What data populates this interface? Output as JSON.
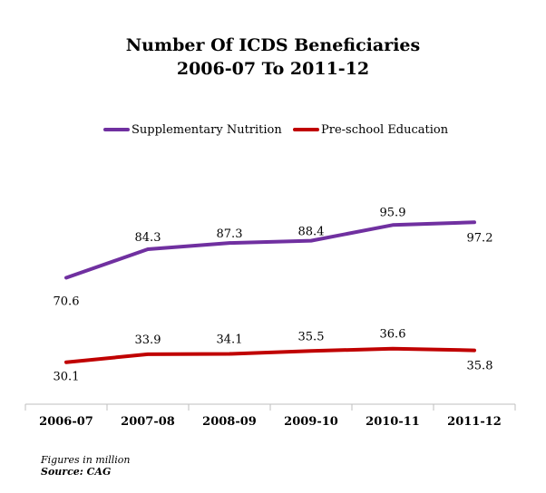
{
  "chart_data": {
    "type": "line",
    "title": [
      "Number Of ICDS Beneficiaries",
      "2006-07 To 2011-12"
    ],
    "categories": [
      "2006-07",
      "2007-08",
      "2008-09",
      "2009-10",
      "2010-11",
      "2011-12"
    ],
    "series": [
      {
        "name": "Supplementary Nutrition",
        "color": "#7030a0",
        "values": [
          70.6,
          84.3,
          87.3,
          88.4,
          95.9,
          97.2
        ],
        "labels": [
          "70.6",
          "84.3",
          "87.3",
          "88.4",
          "95.9",
          "97.2"
        ]
      },
      {
        "name": "Pre-school Education",
        "color": "#c00000",
        "values": [
          30.1,
          33.9,
          34.1,
          35.5,
          36.6,
          35.8
        ],
        "labels": [
          "30.1",
          "33.9",
          "34.1",
          "35.5",
          "36.6",
          "35.8"
        ]
      }
    ],
    "legend": "top",
    "grid": false,
    "ylim": [
      0,
      130
    ]
  },
  "footnotes": {
    "note": "Figures in million",
    "source": "Source: CAG"
  }
}
